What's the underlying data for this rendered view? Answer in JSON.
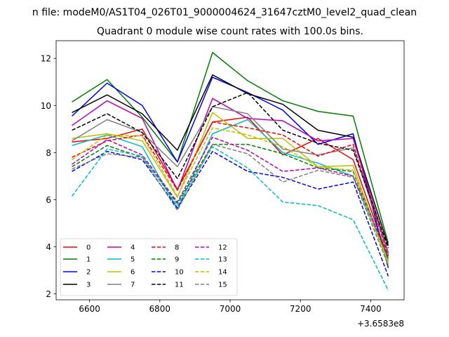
{
  "chart_data": {
    "type": "line",
    "suptitle": "n file: modeM0/AS1T04_026T01_9000004624_31647cztM0_level2_quad_clean",
    "title": "Quadrant 0 module wise count rates with 100.0s bins.",
    "xlabel": "",
    "ylabel": "",
    "x_offset_label": "+3.6583e8",
    "x": [
      6550,
      6650,
      6750,
      6850,
      6950,
      7050,
      7150,
      7250,
      7350,
      7450
    ],
    "xlim": [
      6505,
      7495
    ],
    "ylim": [
      1.75,
      12.75
    ],
    "xticks": [
      6600,
      6800,
      7000,
      7200,
      7400
    ],
    "yticks": [
      2,
      4,
      6,
      8,
      10,
      12
    ],
    "legend": {
      "position": "lower-left",
      "columns": 4
    },
    "series": [
      {
        "name": "0",
        "color": "#ff0000",
        "style": "solid",
        "values": [
          8.45,
          8.6,
          9.0,
          6.45,
          9.3,
          9.5,
          7.9,
          8.6,
          7.7,
          3.5
        ]
      },
      {
        "name": "1",
        "color": "#008000",
        "style": "solid",
        "values": [
          10.15,
          11.1,
          9.5,
          7.6,
          12.25,
          11.05,
          10.2,
          9.75,
          9.55,
          4.15
        ]
      },
      {
        "name": "2",
        "color": "#0000ff",
        "style": "solid",
        "values": [
          9.55,
          10.95,
          10.0,
          7.6,
          11.2,
          10.55,
          9.8,
          8.35,
          8.8,
          3.1
        ]
      },
      {
        "name": "3",
        "color": "#000000",
        "style": "solid",
        "values": [
          9.7,
          10.45,
          9.65,
          8.1,
          11.3,
          10.5,
          10.05,
          8.95,
          8.65,
          4.05
        ]
      },
      {
        "name": "4",
        "color": "#bf00bf",
        "style": "solid",
        "values": [
          9.15,
          10.2,
          9.45,
          6.4,
          10.3,
          9.45,
          9.35,
          8.5,
          8.6,
          3.75
        ]
      },
      {
        "name": "5",
        "color": "#00bfbf",
        "style": "solid",
        "values": [
          8.3,
          8.75,
          8.25,
          5.6,
          8.8,
          9.4,
          8.0,
          7.55,
          7.0,
          3.4
        ]
      },
      {
        "name": "6",
        "color": "#bfbf00",
        "style": "solid",
        "values": [
          8.6,
          8.8,
          8.5,
          6.1,
          9.7,
          8.6,
          8.6,
          7.4,
          7.45,
          3.3
        ]
      },
      {
        "name": "7",
        "color": "#808080",
        "style": "solid",
        "values": [
          8.5,
          9.4,
          8.85,
          7.4,
          9.95,
          9.65,
          8.15,
          7.9,
          8.2,
          3.7
        ]
      },
      {
        "name": "8",
        "color": "#ff0000",
        "style": "dashed",
        "values": [
          7.8,
          8.5,
          8.75,
          6.4,
          9.3,
          9.05,
          8.75,
          7.85,
          8.35,
          3.6
        ]
      },
      {
        "name": "9",
        "color": "#008000",
        "style": "dashed",
        "values": [
          7.4,
          8.3,
          7.8,
          5.85,
          8.35,
          8.35,
          7.95,
          7.35,
          7.2,
          3.5
        ]
      },
      {
        "name": "10",
        "color": "#0000ff",
        "style": "dashed",
        "values": [
          7.2,
          8.05,
          7.7,
          5.65,
          8.05,
          7.2,
          6.95,
          6.45,
          6.75,
          2.75
        ]
      },
      {
        "name": "11",
        "color": "#000000",
        "style": "dashed",
        "values": [
          8.95,
          9.65,
          8.85,
          6.9,
          9.95,
          10.55,
          8.95,
          8.4,
          8.1,
          3.95
        ]
      },
      {
        "name": "12",
        "color": "#bf00bf",
        "style": "dashed",
        "values": [
          7.5,
          8.55,
          7.9,
          5.9,
          8.65,
          8.1,
          7.2,
          7.35,
          7.0,
          3.65
        ]
      },
      {
        "name": "13",
        "color": "#00bfbf",
        "style": "dashed",
        "values": [
          6.15,
          8.15,
          7.85,
          5.75,
          8.25,
          7.35,
          5.9,
          5.75,
          5.15,
          2.15
        ]
      },
      {
        "name": "14",
        "color": "#bfbf00",
        "style": "dashed",
        "values": [
          7.7,
          8.75,
          8.7,
          6.15,
          9.05,
          8.75,
          8.25,
          7.4,
          7.25,
          3.25
        ]
      },
      {
        "name": "15",
        "color": "#808080",
        "style": "dashed",
        "values": [
          7.3,
          7.95,
          7.8,
          5.55,
          8.35,
          7.95,
          6.75,
          7.25,
          6.95,
          3.2
        ]
      }
    ]
  }
}
